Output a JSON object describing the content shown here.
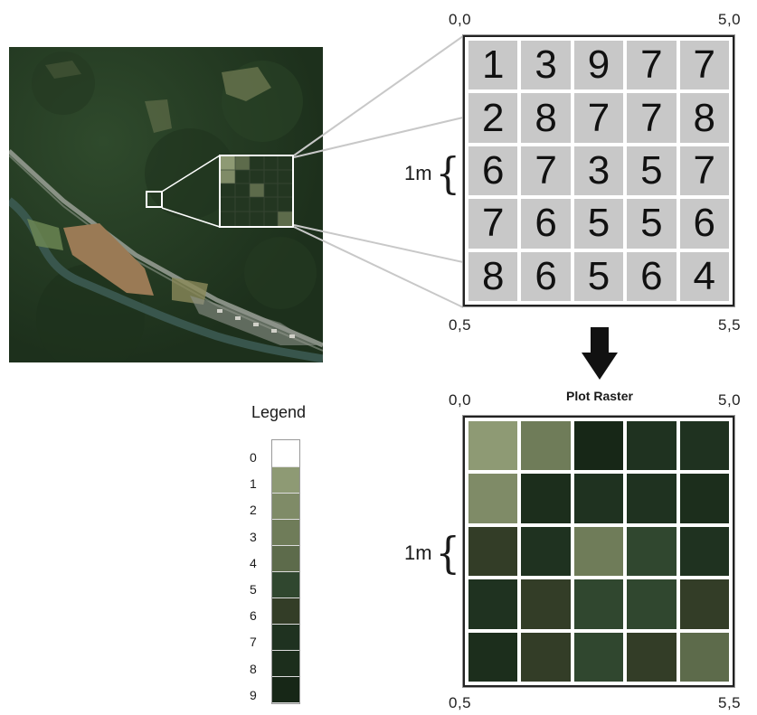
{
  "top_grid": {
    "coords": {
      "top_left": "0,0",
      "top_right": "5,0",
      "bottom_left": "0,5",
      "bottom_right": "5,5"
    },
    "scale_label": "1m",
    "values": [
      [
        1,
        3,
        9,
        7,
        7
      ],
      [
        2,
        8,
        7,
        7,
        8
      ],
      [
        6,
        7,
        3,
        5,
        7
      ],
      [
        7,
        6,
        5,
        5,
        6
      ],
      [
        8,
        6,
        5,
        6,
        4
      ]
    ]
  },
  "plot_raster": {
    "title": "Plot Raster",
    "coords": {
      "top_left": "0,0",
      "top_right": "5,0",
      "bottom_left": "0,5",
      "bottom_right": "5,5"
    },
    "scale_label": "1m"
  },
  "legend": {
    "title": "Legend",
    "entries": [
      {
        "label": "0",
        "color": "#ffffff"
      },
      {
        "label": "1",
        "color": "#8e9a74"
      },
      {
        "label": "2",
        "color": "#7f8b67"
      },
      {
        "label": "3",
        "color": "#6f7c59"
      },
      {
        "label": "4",
        "color": "#5d6b4b"
      },
      {
        "label": "5",
        "color": "#30472f"
      },
      {
        "label": "6",
        "color": "#333d27"
      },
      {
        "label": "7",
        "color": "#1f3220"
      },
      {
        "label": "8",
        "color": "#1c2e1c"
      },
      {
        "label": "9",
        "color": "#172717"
      }
    ]
  }
}
